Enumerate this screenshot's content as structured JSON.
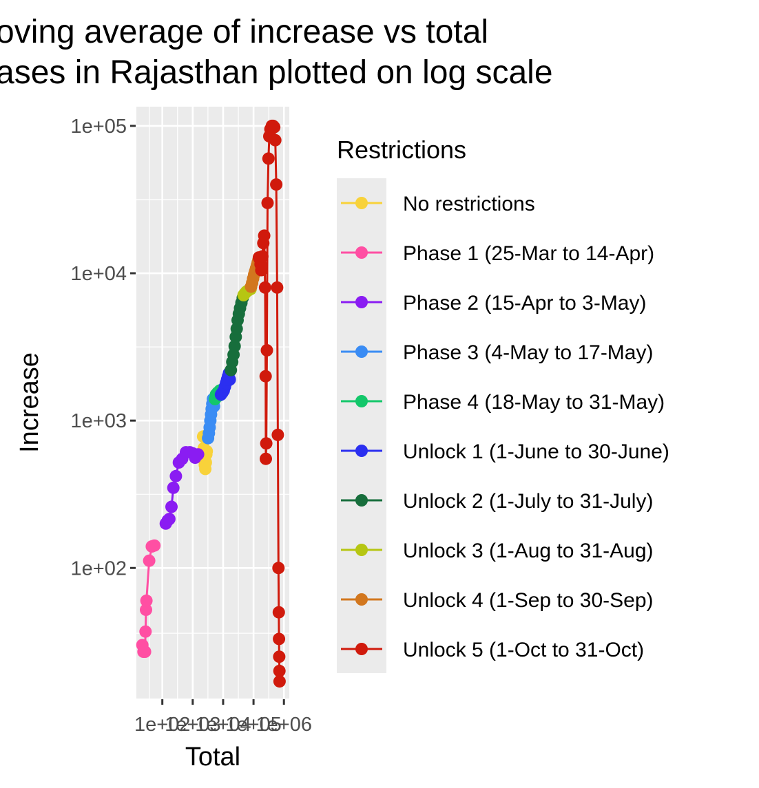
{
  "chart_data": {
    "type": "scatter",
    "title_lines": [
      "oving average of increase vs total",
      "ases in Rajasthan plotted on log scale"
    ],
    "xlabel": "Total",
    "ylabel": "Increase",
    "x_scale": "log10",
    "y_scale": "log10",
    "xlim": [
      14,
      1500000
    ],
    "ylim": [
      13,
      135000
    ],
    "x_ticks": [
      100,
      1000,
      10000,
      100000,
      1000000
    ],
    "x_tick_labels": [
      "1e+02",
      "1e+03",
      "1e+04",
      "1e+05",
      "1e+06"
    ],
    "y_ticks": [
      100,
      1000,
      10000,
      100000
    ],
    "y_tick_labels": [
      "1e+02",
      "1e+03",
      "1e+04",
      "1e+05"
    ],
    "grid": true,
    "legend": {
      "title": "Restrictions",
      "position": "right"
    },
    "series": [
      {
        "name": "No restrictions",
        "color": "#f8d23a",
        "points": [
          [
            1950,
            560
          ],
          [
            2100,
            600
          ],
          [
            2200,
            780
          ],
          [
            2300,
            650
          ],
          [
            2400,
            560
          ],
          [
            2500,
            500
          ],
          [
            2600,
            470
          ],
          [
            2700,
            520
          ],
          [
            2800,
            590
          ],
          [
            2900,
            620
          ]
        ]
      },
      {
        "name": "Phase 1 (25-Mar to 14-Apr)",
        "color": "#ff4fa3",
        "points": [
          [
            22,
            30
          ],
          [
            24,
            27
          ],
          [
            27,
            27
          ],
          [
            28,
            37
          ],
          [
            29,
            52
          ],
          [
            30,
            60
          ],
          [
            37,
            112
          ],
          [
            45,
            140
          ],
          [
            55,
            142
          ]
        ]
      },
      {
        "name": "Phase 2 (15-Apr to 3-May)",
        "color": "#8a1cf2",
        "points": [
          [
            130,
            200
          ],
          [
            150,
            210
          ],
          [
            170,
            215
          ],
          [
            200,
            260
          ],
          [
            230,
            350
          ],
          [
            280,
            420
          ],
          [
            350,
            520
          ],
          [
            450,
            550
          ],
          [
            600,
            610
          ],
          [
            800,
            610
          ],
          [
            1000,
            600
          ],
          [
            1200,
            560
          ],
          [
            1500,
            590
          ]
        ]
      },
      {
        "name": "Phase 3 (4-May to 17-May)",
        "color": "#3a8cf4",
        "points": [
          [
            3200,
            760
          ],
          [
            3400,
            820
          ],
          [
            3600,
            900
          ],
          [
            3800,
            1000
          ],
          [
            4000,
            1100
          ],
          [
            4200,
            1200
          ],
          [
            4400,
            1300
          ],
          [
            4600,
            1400
          ],
          [
            4800,
            1300
          ],
          [
            5000,
            1250
          ]
        ]
      },
      {
        "name": "Phase 4 (18-May to 31-May)",
        "color": "#13c76a",
        "points": [
          [
            5400,
            1400
          ],
          [
            5800,
            1500
          ],
          [
            6200,
            1450
          ],
          [
            6600,
            1550
          ],
          [
            7000,
            1500
          ],
          [
            7400,
            1480
          ],
          [
            7800,
            1600
          ]
        ]
      },
      {
        "name": "Unlock 1 (1-June to 30-June)",
        "color": "#2b2ff0",
        "points": [
          [
            8500,
            1500
          ],
          [
            9500,
            1550
          ],
          [
            10500,
            1600
          ],
          [
            11500,
            1700
          ],
          [
            12500,
            1800
          ],
          [
            13500,
            1900
          ],
          [
            14500,
            2000
          ],
          [
            15500,
            2100
          ],
          [
            16500,
            1900
          ]
        ]
      },
      {
        "name": "Unlock 2 (1-July to 31-July)",
        "color": "#176e3c",
        "points": [
          [
            18000,
            2200
          ],
          [
            20000,
            2500
          ],
          [
            22000,
            2800
          ],
          [
            24000,
            3200
          ],
          [
            26000,
            3700
          ],
          [
            28000,
            4200
          ],
          [
            30000,
            4800
          ],
          [
            33000,
            5300
          ],
          [
            36000,
            5800
          ],
          [
            40000,
            6300
          ],
          [
            44000,
            6800
          ]
        ]
      },
      {
        "name": "Unlock 3 (1-Aug to 31-Aug)",
        "color": "#b6c613",
        "points": [
          [
            47000,
            7100
          ],
          [
            52000,
            7300
          ],
          [
            58000,
            7500
          ],
          [
            64000,
            7600
          ],
          [
            70000,
            7700
          ],
          [
            76000,
            7800
          ],
          [
            80000,
            7800
          ]
        ]
      },
      {
        "name": "Unlock 4 (1-Sep to 30-Sep)",
        "color": "#d2771e",
        "points": [
          [
            83000,
            8100
          ],
          [
            90000,
            8600
          ],
          [
            97000,
            9200
          ],
          [
            105000,
            9800
          ],
          [
            113000,
            10300
          ],
          [
            121000,
            10800
          ],
          [
            129000,
            11300
          ],
          [
            137000,
            11800
          ],
          [
            145000,
            12300
          ]
        ]
      },
      {
        "name": "Unlock 5 (1-Oct to 31-Oct)",
        "color": "#d01a0c",
        "points": [
          [
            150000,
            12800
          ],
          [
            160000,
            12500
          ],
          [
            170000,
            11500
          ],
          [
            180000,
            10500
          ],
          [
            195000,
            13000
          ],
          [
            210000,
            16000
          ],
          [
            225000,
            18000
          ],
          [
            240000,
            8000
          ],
          [
            250000,
            2000
          ],
          [
            255000,
            550
          ],
          [
            262000,
            700
          ],
          [
            275000,
            3000
          ],
          [
            290000,
            30000
          ],
          [
            310000,
            60000
          ],
          [
            330000,
            85000
          ],
          [
            360000,
            95000
          ],
          [
            400000,
            100000
          ],
          [
            440000,
            100000
          ],
          [
            480000,
            98000
          ],
          [
            520000,
            80000
          ],
          [
            560000,
            40000
          ],
          [
            600000,
            8000
          ],
          [
            630000,
            800
          ],
          [
            660000,
            100
          ],
          [
            680000,
            50
          ],
          [
            690000,
            33
          ],
          [
            700000,
            25
          ],
          [
            710000,
            20
          ],
          [
            720000,
            17
          ]
        ]
      }
    ]
  }
}
